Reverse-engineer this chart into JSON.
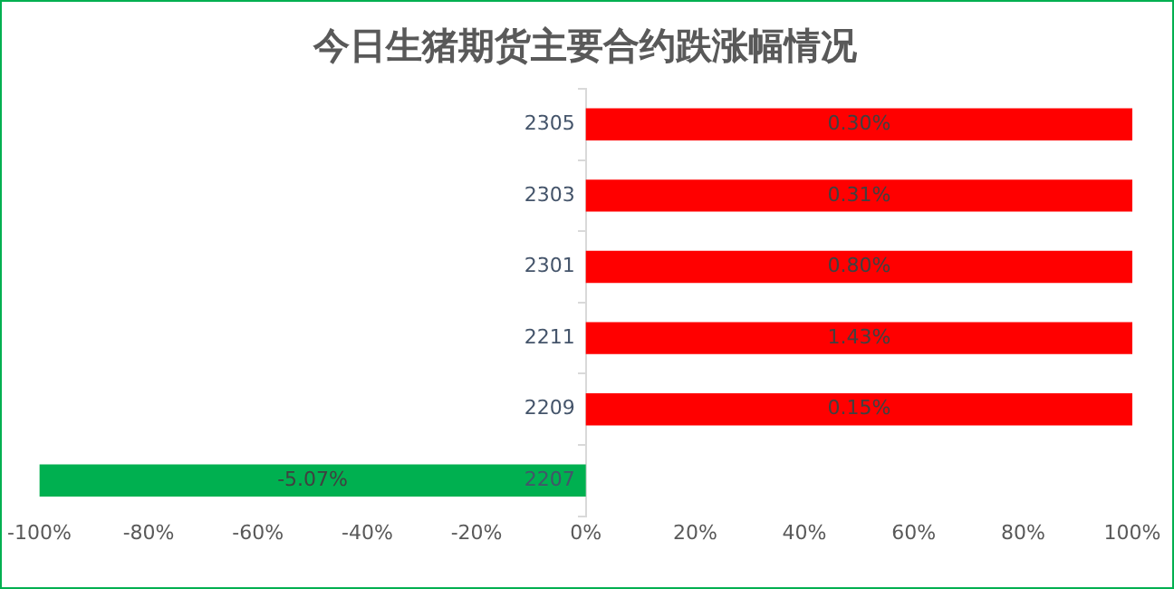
{
  "chart_data": {
    "type": "bar",
    "orientation": "horizontal",
    "title": "今日生猪期货主要合约跌涨幅情况",
    "categories": [
      "2305",
      "2303",
      "2301",
      "2211",
      "2209",
      "2207"
    ],
    "values": [
      100,
      100,
      100,
      100,
      100,
      -100
    ],
    "colors": [
      "#ff0000",
      "#ff0000",
      "#ff0000",
      "#ff0000",
      "#ff0000",
      "#00b050"
    ],
    "annotations": [
      "0.30%",
      "0.31%",
      "0.80%",
      "1.43%",
      "0.15%",
      "-5.07%"
    ],
    "xlim": [
      -100,
      100
    ],
    "xticks": [
      {
        "value": -100,
        "label": "-100%"
      },
      {
        "value": -80,
        "label": "-80%"
      },
      {
        "value": -60,
        "label": "-60%"
      },
      {
        "value": -40,
        "label": "-40%"
      },
      {
        "value": -20,
        "label": "-20%"
      },
      {
        "value": 0,
        "label": "0%"
      },
      {
        "value": 20,
        "label": "20%"
      },
      {
        "value": 40,
        "label": "40%"
      },
      {
        "value": 60,
        "label": "60%"
      },
      {
        "value": 80,
        "label": "80%"
      },
      {
        "value": 100,
        "label": "100%"
      }
    ],
    "grid": false,
    "legend": false
  }
}
